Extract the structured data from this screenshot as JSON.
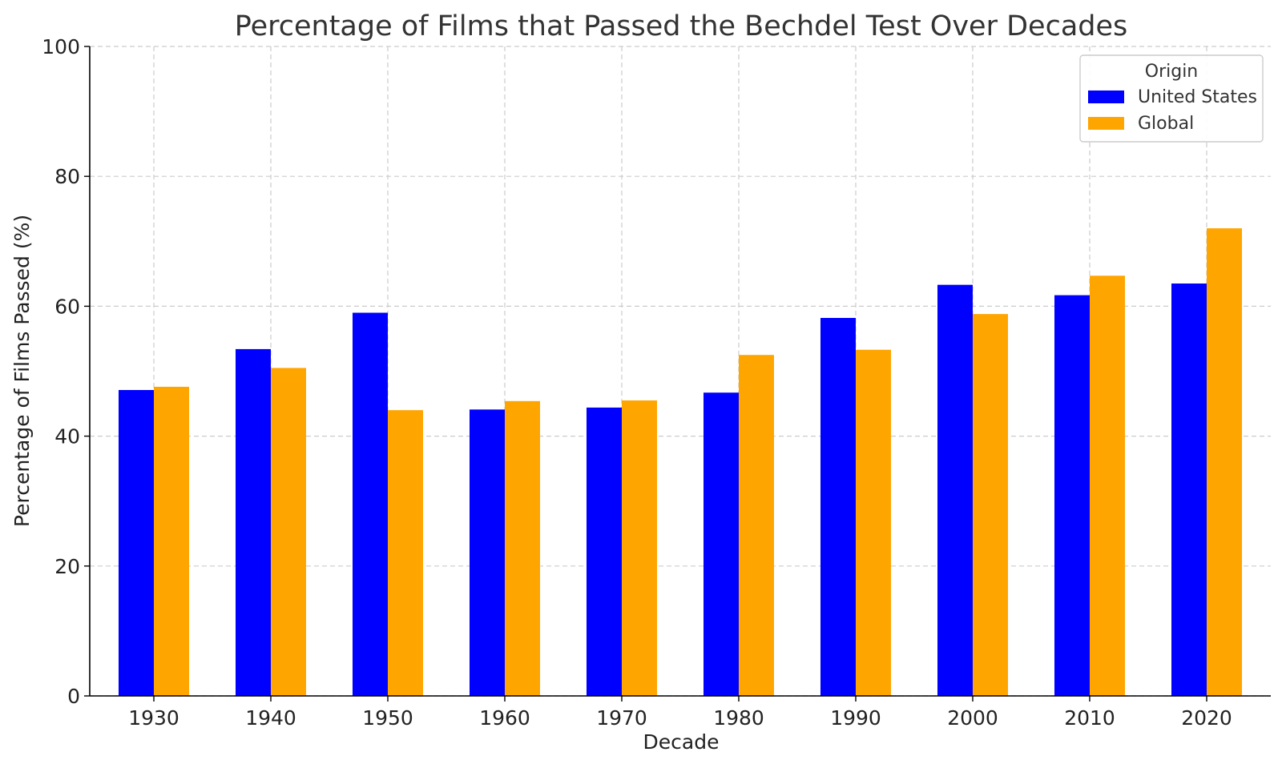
{
  "chart_data": {
    "type": "bar",
    "title": "Percentage of Films that Passed the Bechdel Test Over Decades",
    "xlabel": "Decade",
    "ylabel": "Percentage of Films Passed (%)",
    "categories": [
      "1930",
      "1940",
      "1950",
      "1960",
      "1970",
      "1980",
      "1990",
      "2000",
      "2010",
      "2020"
    ],
    "series": [
      {
        "name": "United States",
        "color": "#0000ff",
        "values": [
          47.1,
          53.4,
          59.0,
          44.1,
          44.4,
          46.7,
          58.2,
          63.3,
          61.7,
          63.5
        ]
      },
      {
        "name": "Global",
        "color": "#ffa500",
        "values": [
          47.6,
          50.5,
          44.0,
          45.4,
          45.5,
          52.5,
          53.3,
          58.8,
          64.7,
          72.0
        ]
      }
    ],
    "ylim": [
      0,
      100
    ],
    "yticks": [
      0,
      20,
      40,
      60,
      80,
      100
    ],
    "grid": true,
    "legend": {
      "title": "Origin",
      "position": "top-right"
    }
  }
}
